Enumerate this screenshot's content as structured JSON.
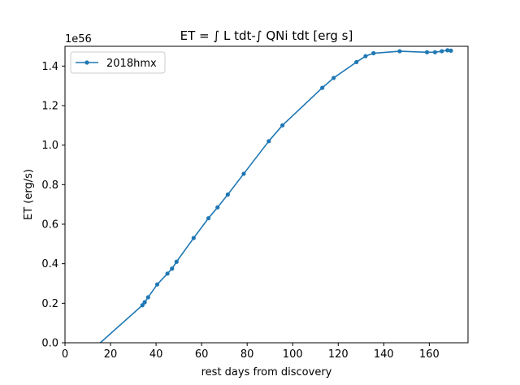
{
  "chart_data": {
    "type": "line",
    "title": "ET = ∫ L tdt-∫ QNi tdt [erg s]",
    "xlabel": "rest days from discovery",
    "ylabel": "ET (erg/s)",
    "y_offset_label": "1e56",
    "xlim": [
      0,
      177
    ],
    "ylim": [
      0,
      1.5
    ],
    "xticks": [
      0,
      20,
      40,
      60,
      80,
      100,
      120,
      140,
      160
    ],
    "xtick_labels": [
      "0",
      "20",
      "40",
      "60",
      "80",
      "100",
      "120",
      "140",
      "160"
    ],
    "yticks": [
      0.0,
      0.2,
      0.4,
      0.6,
      0.8,
      1.0,
      1.2,
      1.4
    ],
    "ytick_labels": [
      "0.0",
      "0.2",
      "0.4",
      "0.6",
      "0.8",
      "1.0",
      "1.2",
      "1.4"
    ],
    "grid": false,
    "legend_position": "top-left",
    "series": [
      {
        "name": "2018hmx",
        "color": "#1f77b4",
        "x": [
          15.5,
          34,
          35,
          36.5,
          40.5,
          45,
          47,
          49,
          56.5,
          63,
          67,
          71.5,
          78.5,
          89.5,
          95.5,
          113,
          118,
          128,
          132,
          135.5,
          147,
          159,
          162.5,
          165.5,
          168,
          169.5
        ],
        "y": [
          0.0,
          0.19,
          0.205,
          0.23,
          0.295,
          0.35,
          0.375,
          0.41,
          0.53,
          0.63,
          0.685,
          0.75,
          0.855,
          1.02,
          1.1,
          1.29,
          1.34,
          1.42,
          1.45,
          1.465,
          1.475,
          1.47,
          1.47,
          1.475,
          1.48,
          1.478
        ],
        "markers": [
          false,
          true,
          true,
          true,
          true,
          true,
          true,
          true,
          true,
          true,
          true,
          true,
          true,
          true,
          true,
          true,
          true,
          true,
          true,
          true,
          true,
          true,
          true,
          true,
          true,
          true
        ]
      }
    ]
  }
}
